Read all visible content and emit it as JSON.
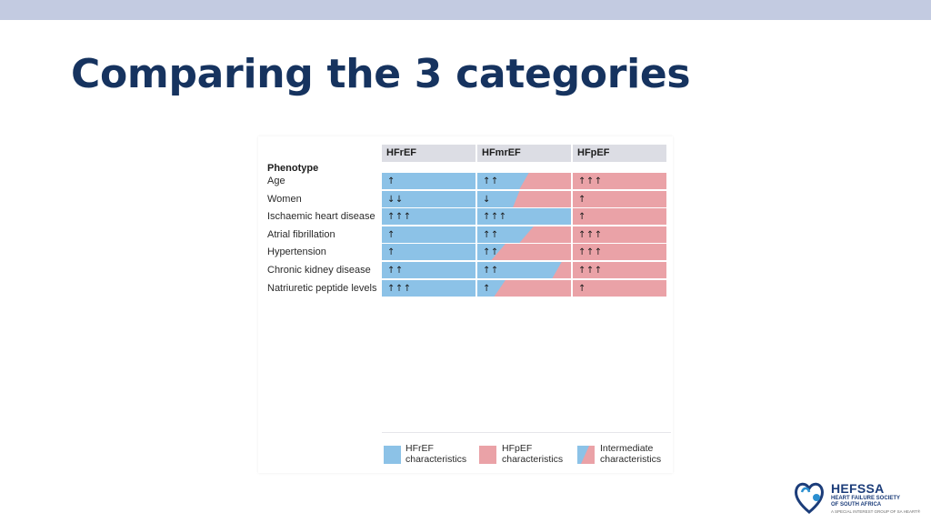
{
  "slide": {
    "title": "Comparing the 3 categories"
  },
  "table": {
    "columns": [
      "HFrEF",
      "HFmrEF",
      "HFpEF"
    ],
    "section_label": "Phenotype",
    "rows": [
      {
        "label": "Age",
        "hfref": "↑",
        "hfmref": "↑↑",
        "hfpef": "↑↑↑",
        "hfmref_blue_top": 0.55,
        "hfmref_blue_bottom": 0.45
      },
      {
        "label": "Women",
        "hfref": "↓↓",
        "hfmref": "↓",
        "hfpef": "↑",
        "hfmref_blue_top": 0.45,
        "hfmref_blue_bottom": 0.38
      },
      {
        "label": "Ischaemic heart disease",
        "hfref": "↑↑↑",
        "hfmref": "↑↑↑",
        "hfpef": "↑",
        "hfmref_blue_top": 1.0,
        "hfmref_blue_bottom": 1.0
      },
      {
        "label": "Atrial fibrillation",
        "hfref": "↑",
        "hfmref": "↑↑",
        "hfpef": "↑↑↑",
        "hfmref_blue_top": 0.6,
        "hfmref_blue_bottom": 0.45
      },
      {
        "label": "Hypertension",
        "hfref": "↑",
        "hfmref": "↑↑",
        "hfpef": "↑↑↑",
        "hfmref_blue_top": 0.3,
        "hfmref_blue_bottom": 0.15
      },
      {
        "label": "Chronic kidney disease",
        "hfref": "↑↑",
        "hfmref": "↑↑",
        "hfpef": "↑↑↑",
        "hfmref_blue_top": 0.9,
        "hfmref_blue_bottom": 0.8
      },
      {
        "label": "Natriuretic peptide levels",
        "hfref": "↑↑↑",
        "hfmref": "↑",
        "hfpef": "↑",
        "hfmref_blue_top": 0.3,
        "hfmref_blue_bottom": 0.18
      }
    ]
  },
  "legend": [
    {
      "line1": "HFrEF",
      "line2": "characteristics",
      "kind": "blue"
    },
    {
      "line1": "HFpEF",
      "line2": "characteristics",
      "kind": "red"
    },
    {
      "line1": "Intermediate",
      "line2": "characteristics",
      "kind": "mixed"
    }
  ],
  "colors": {
    "hfref": "#8cc2e7",
    "hfpef": "#eaa2a7",
    "title": "#16335f",
    "header_bg": "#dcdde4"
  },
  "logo": {
    "name": "HEFSSA",
    "subtitle_line1": "HEART FAILURE SOCIETY",
    "subtitle_line2": "OF SOUTH AFRICA",
    "tagline": "A SPECIAL INTEREST GROUP OF SA HEART®"
  }
}
